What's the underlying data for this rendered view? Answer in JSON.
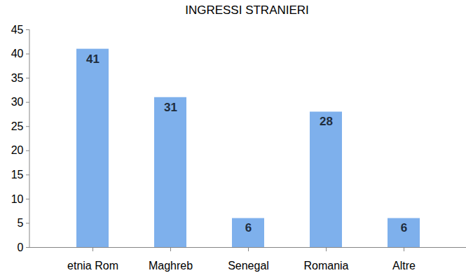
{
  "chart_data": {
    "type": "bar",
    "title": "INGRESSI STRANIERI",
    "categories": [
      "etnia Rom",
      "Maghreb",
      "Senegal",
      "Romania",
      "Altre"
    ],
    "values": [
      41,
      31,
      6,
      28,
      6
    ],
    "color": "#7eb0ec",
    "ylim": [
      0,
      45
    ],
    "yticks": [
      0,
      5,
      10,
      15,
      20,
      25,
      30,
      35,
      40,
      45
    ],
    "grid": false,
    "data_labels": true
  }
}
